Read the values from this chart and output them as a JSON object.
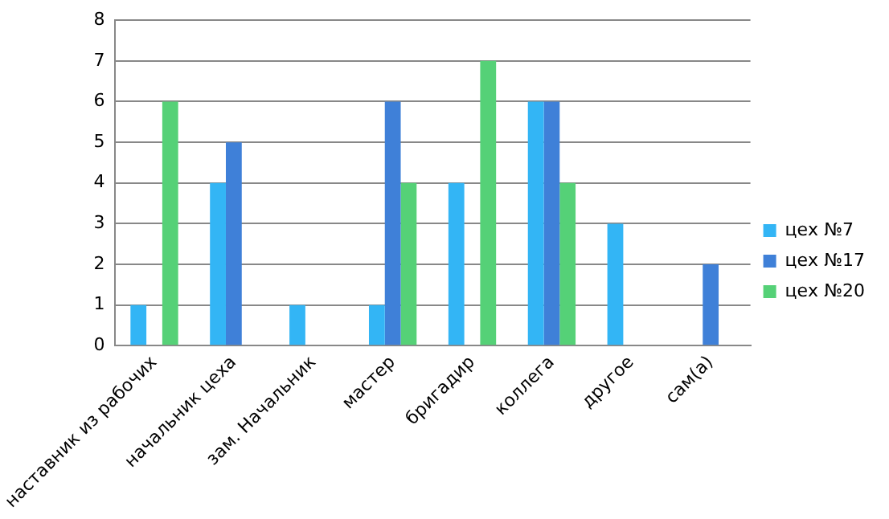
{
  "chart_data": {
    "type": "bar",
    "categories": [
      "наставник из рабочих",
      "начальник цеха",
      "зам. Начальник",
      "мастер",
      "бригадир",
      "коллега",
      "другое",
      "сам(а)"
    ],
    "series": [
      {
        "name": "цех №7",
        "color": "#33b5f5",
        "values": [
          1,
          4,
          1,
          1,
          4,
          6,
          3,
          0
        ]
      },
      {
        "name": "цех №17",
        "color": "#3f80d8",
        "values": [
          0,
          5,
          0,
          6,
          0,
          6,
          0,
          2
        ]
      },
      {
        "name": "цех №20",
        "color": "#55d177",
        "values": [
          6,
          0,
          0,
          4,
          7,
          4,
          0,
          0
        ]
      }
    ],
    "ylim": [
      0,
      8
    ],
    "yticks": [
      0,
      1,
      2,
      3,
      4,
      5,
      6,
      7,
      8
    ],
    "grid": "y",
    "legend": "right"
  }
}
